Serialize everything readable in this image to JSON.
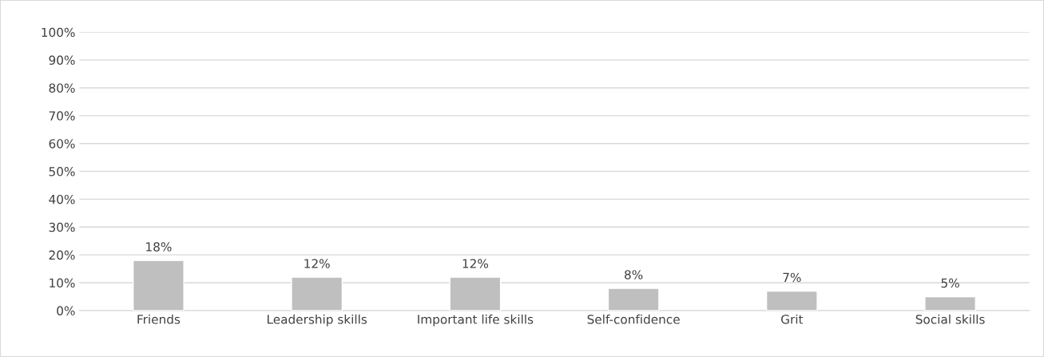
{
  "chart_data": {
    "type": "bar",
    "categories": [
      "Friends",
      "Leadership skills",
      "Important life skills",
      "Self-confidence",
      "Grit",
      "Social skills"
    ],
    "values": [
      18,
      12,
      12,
      8,
      7,
      5
    ],
    "value_labels": [
      "18%",
      "12%",
      "12%",
      "8%",
      "7%",
      "5%"
    ],
    "color": "#bfbfbf",
    "ylim": [
      0,
      100
    ],
    "yticks": [
      {
        "value": 0,
        "label": "0%"
      },
      {
        "value": 10,
        "label": "10%"
      },
      {
        "value": 20,
        "label": "20%"
      },
      {
        "value": 30,
        "label": "30%"
      },
      {
        "value": 40,
        "label": "40%"
      },
      {
        "value": 50,
        "label": "50%"
      },
      {
        "value": 60,
        "label": "60%"
      },
      {
        "value": 70,
        "label": "70%"
      },
      {
        "value": 80,
        "label": "80%"
      },
      {
        "value": 90,
        "label": "90%"
      },
      {
        "value": 100,
        "label": "100%"
      }
    ],
    "grid": "y",
    "legend": false
  }
}
